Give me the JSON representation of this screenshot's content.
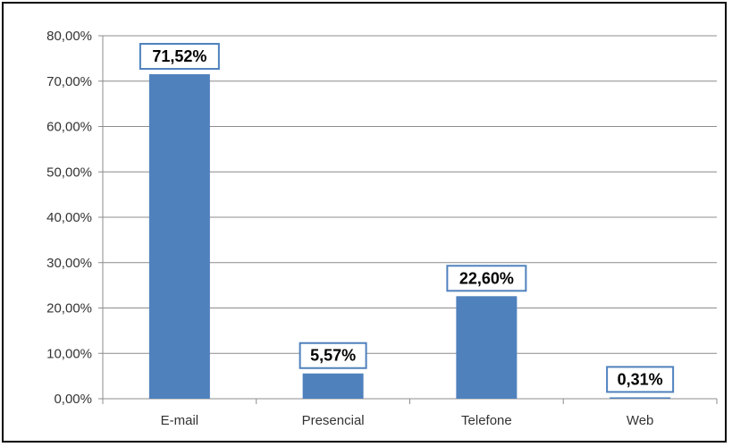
{
  "chart_data": {
    "type": "bar",
    "categories": [
      "E-mail",
      "Presencial",
      "Telefone",
      "Web"
    ],
    "values": [
      71.52,
      5.57,
      22.6,
      0.31
    ],
    "data_labels": [
      "71,52%",
      "5,57%",
      "22,60%",
      "0,31%"
    ],
    "y_ticks": [
      0,
      10,
      20,
      30,
      40,
      50,
      60,
      70,
      80
    ],
    "y_tick_labels": [
      "0,00%",
      "10,00%",
      "20,00%",
      "30,00%",
      "40,00%",
      "50,00%",
      "60,00%",
      "70,00%",
      "80,00%"
    ],
    "ylim": [
      0,
      80
    ],
    "grid": true,
    "legend": "none",
    "bar_color": "#4f81bd",
    "label_border_color": "#4f81bd"
  }
}
